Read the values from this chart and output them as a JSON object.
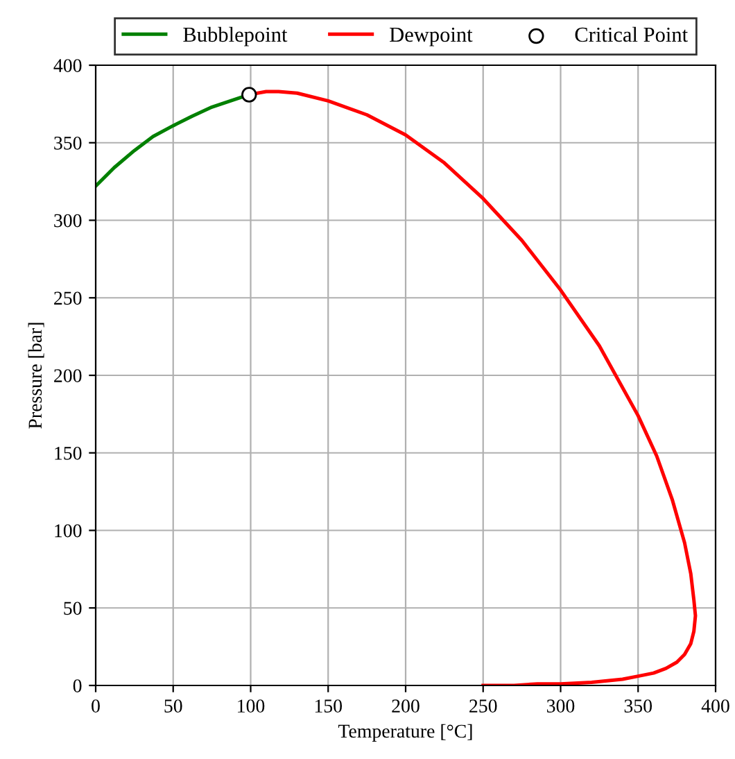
{
  "chart_data": {
    "type": "line",
    "xlabel": "Temperature [°C]",
    "ylabel": "Pressure [bar]",
    "xlim": [
      0,
      400
    ],
    "ylim": [
      0,
      400
    ],
    "xticks": [
      0,
      50,
      100,
      150,
      200,
      250,
      300,
      350,
      400
    ],
    "yticks": [
      0,
      50,
      100,
      150,
      200,
      250,
      300,
      350,
      400
    ],
    "grid": true,
    "legend": "top",
    "series": [
      {
        "name": "Bubblepoint",
        "color": "#008000",
        "x": [
          0,
          12,
          25,
          37,
          50,
          62,
          75,
          87,
          99
        ],
        "values": [
          322,
          334,
          345,
          354,
          361,
          367,
          373,
          377,
          381
        ]
      },
      {
        "name": "Dewpoint",
        "color": "#ff0000",
        "x": [
          99,
          110,
          118,
          130,
          150,
          175,
          200,
          225,
          250,
          275,
          300,
          325,
          350,
          362,
          372,
          380,
          384,
          386,
          387,
          386,
          384,
          380,
          375,
          368,
          360,
          350,
          340,
          320,
          300,
          285,
          270,
          250
        ],
        "values": [
          381,
          383,
          383,
          382,
          377,
          368,
          355,
          337,
          314,
          287,
          255,
          219,
          174,
          148,
          120,
          92,
          72,
          55,
          45,
          35,
          27,
          20,
          15,
          11,
          8,
          6,
          4,
          2,
          1,
          1,
          0,
          0
        ]
      },
      {
        "name": "Critical Point",
        "type": "scatter",
        "marker": "circle",
        "color": "#ffffff",
        "x": [
          99
        ],
        "values": [
          381
        ]
      }
    ]
  }
}
